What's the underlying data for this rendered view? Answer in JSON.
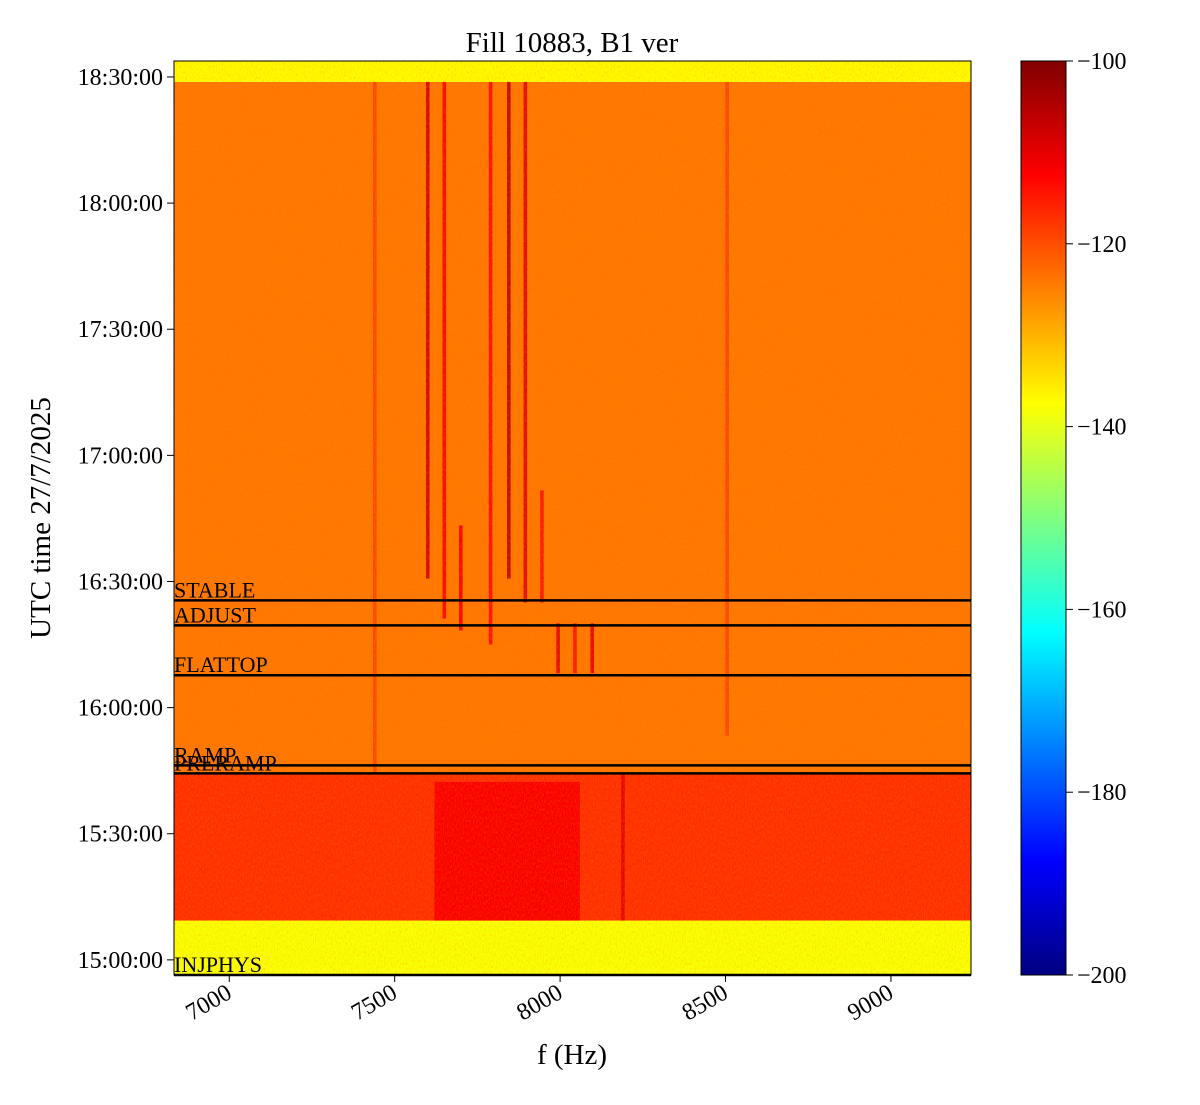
{
  "chart_data": {
    "type": "heatmap",
    "title": "Fill 10883, B1 ver",
    "xlabel": "f (Hz)",
    "ylabel": "UTC time 27/7/2025",
    "colormap": "jet",
    "xlim": [
      6833,
      9242
    ],
    "xticks": [
      7000,
      7500,
      8000,
      8500,
      9000
    ],
    "ylim": [
      53784,
      66828
    ],
    "yticks": [
      {
        "value": 54000,
        "label": "15:00:00"
      },
      {
        "value": 55800,
        "label": "15:30:00"
      },
      {
        "value": 57600,
        "label": "16:00:00"
      },
      {
        "value": 59400,
        "label": "16:30:00"
      },
      {
        "value": 61200,
        "label": "17:00:00"
      },
      {
        "value": 63000,
        "label": "17:30:00"
      },
      {
        "value": 64800,
        "label": "18:00:00"
      },
      {
        "value": 66600,
        "label": "18:30:00"
      }
    ],
    "clim": [
      -200,
      -100
    ],
    "cticks": [
      {
        "value": -100,
        "label": "−100"
      },
      {
        "value": -120,
        "label": "−120"
      },
      {
        "value": -140,
        "label": "−140"
      },
      {
        "value": -160,
        "label": "−160"
      },
      {
        "value": -180,
        "label": "−180"
      },
      {
        "value": -200,
        "label": "−200"
      }
    ],
    "regions": [
      {
        "t0": 53784,
        "t1": 54561,
        "level": -138
      },
      {
        "t0": 54561,
        "t1": 56667,
        "level": -117
      },
      {
        "t0": 56667,
        "t1": 66529,
        "level": -124
      },
      {
        "t0": 66529,
        "t1": 66828,
        "level": -137
      },
      {
        "t0": 54561,
        "t1": 56540,
        "f0": 7620,
        "f1": 8060,
        "level": -112
      }
    ],
    "spectral_lines": [
      {
        "f": 7440,
        "t0": 56667,
        "t1": 66529,
        "level": -119
      },
      {
        "f": 8505,
        "t0": 57200,
        "t1": 66529,
        "level": -119
      },
      {
        "f": 7600,
        "t0": 59442,
        "t1": 66529,
        "level": -108
      },
      {
        "f": 7650,
        "t0": 58873,
        "t1": 66529,
        "level": -112
      },
      {
        "f": 7700,
        "t0": 58700,
        "t1": 60200,
        "level": -111
      },
      {
        "f": 7790,
        "t0": 58500,
        "t1": 66529,
        "level": -113
      },
      {
        "f": 7845,
        "t0": 59442,
        "t1": 66529,
        "level": -106
      },
      {
        "f": 7895,
        "t0": 59100,
        "t1": 66529,
        "level": -110
      },
      {
        "f": 7945,
        "t0": 59100,
        "t1": 60700,
        "level": -114
      },
      {
        "f": 7994,
        "t0": 58091,
        "t1": 58802,
        "level": -110
      },
      {
        "f": 8045,
        "t0": 58091,
        "t1": 58802,
        "level": -114
      },
      {
        "f": 8097,
        "t0": 58091,
        "t1": 58802,
        "level": -110
      },
      {
        "f": 8190,
        "t0": 54561,
        "t1": 56667,
        "level": -110
      }
    ],
    "modes": [
      {
        "name": "STABLE",
        "t": 59130
      },
      {
        "name": "ADJUST",
        "t": 58774
      },
      {
        "name": "FLATTOP",
        "t": 58062
      },
      {
        "name": "RAMP",
        "t": 56775
      },
      {
        "name": "PRERAMP",
        "t": 56661
      },
      {
        "name": "INJPHYS",
        "t": 53784
      }
    ]
  }
}
